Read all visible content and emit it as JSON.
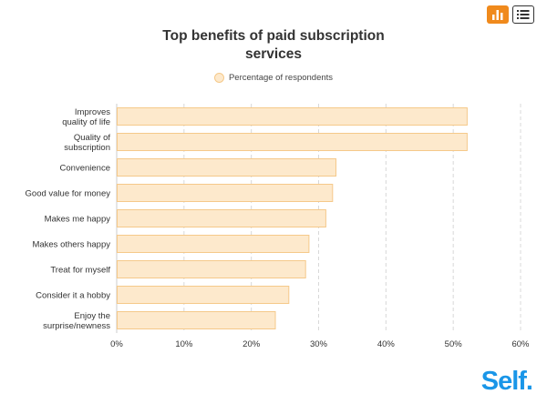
{
  "toolbar": {
    "chart_icon": "bar-chart-icon",
    "list_icon": "list-icon",
    "accent_color": "#f08a1c"
  },
  "logo_text": "Self.",
  "colors": {
    "bar_fill": "#fde9cc",
    "bar_stroke": "#f5c98a",
    "logo": "#1a96e8"
  },
  "chart_data": {
    "type": "bar",
    "orientation": "horizontal",
    "title": "Top benefits of paid subscription services",
    "legend": [
      "Percentage of respondents"
    ],
    "legend_position": "top-center",
    "categories": [
      "Improves quality of life",
      "Quality of subscription",
      "Convenience",
      "Good value for money",
      "Makes me happy",
      "Makes others happy",
      "Treat for myself",
      "Consider it a hobby",
      "Enjoy the surprise/newness"
    ],
    "series": [
      {
        "name": "Percentage of respondents",
        "values": [
          52,
          52,
          32.5,
          32,
          31,
          28.5,
          28,
          25.5,
          23.5
        ]
      }
    ],
    "xlim": [
      0,
      60
    ],
    "xticks": [
      "0%",
      "10%",
      "20%",
      "30%",
      "40%",
      "50%",
      "60%"
    ],
    "grid": true
  }
}
